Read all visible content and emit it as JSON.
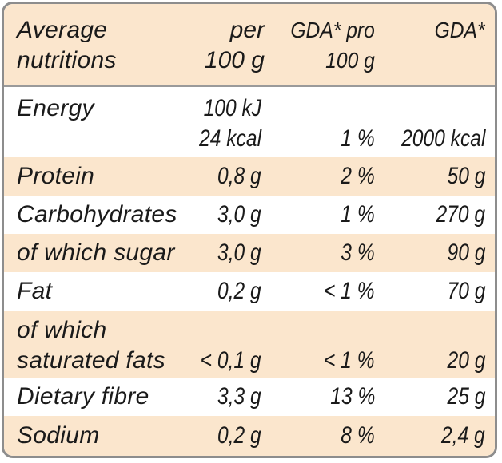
{
  "header": {
    "col_name_line1": "Average",
    "col_name_line2": "nutritions",
    "col_per_line1": "per",
    "col_per_line2": "100 g",
    "col_gdapro_line1": "GDA* pro",
    "col_gdapro_line2": "100 g",
    "col_gda": "GDA*"
  },
  "rows": [
    {
      "name": "Energy",
      "per_line1": "100 kJ",
      "per_line2": "24 kcal",
      "gda_pro": "1 %",
      "gda": "2000 kcal"
    },
    {
      "name": "Protein",
      "per": "0,8 g",
      "gda_pro": "2 %",
      "gda": "50 g"
    },
    {
      "name": "Carbohydrates",
      "per": "3,0 g",
      "gda_pro": "1 %",
      "gda": "270 g"
    },
    {
      "name": "of which sugar",
      "per": "3,0 g",
      "gda_pro": "3 %",
      "gda": "90 g"
    },
    {
      "name": "Fat",
      "per": "0,2 g",
      "gda_pro": "< 1 %",
      "gda": "70 g"
    },
    {
      "name_line1": "of which",
      "name_line2": "saturated fats",
      "per": "< 0,1 g",
      "gda_pro": "< 1 %",
      "gda": "20 g"
    },
    {
      "name": "Dietary fibre",
      "per": "3,3 g",
      "gda_pro": "13 %",
      "gda": "25 g"
    },
    {
      "name": "Sodium",
      "per": "0,2 g",
      "gda_pro": "8 %",
      "gda": "2,4 g"
    }
  ],
  "colors": {
    "shaded_row": "#fbe6cd",
    "border": "#8d8d8d",
    "text": "#1a1a1a"
  }
}
